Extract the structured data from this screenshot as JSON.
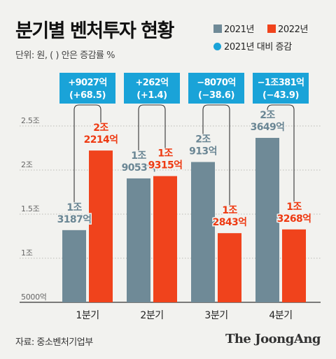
{
  "header": {
    "title": "분기별 벤처투자 현황",
    "unit": "단위: 원, ( ) 안은 증감률 %"
  },
  "legend": {
    "series_2021": "2021년",
    "series_2022": "2022년",
    "change": "2021년 대비 증감"
  },
  "colors": {
    "series_2021": "#6f8a97",
    "series_2022": "#f0431c",
    "change": "#1aa3d8",
    "label_2021": "#6a8694",
    "label_2022": "#ee3a12"
  },
  "footer": {
    "source": "자료: 중소벤처기업부",
    "brand": "The JoongAng"
  },
  "chart_data": {
    "type": "bar",
    "categories": [
      "1분기",
      "2분기",
      "3분기",
      "4분기"
    ],
    "series": [
      {
        "name": "2021년",
        "values": [
          1.3187,
          1.9053,
          2.0913,
          2.3649
        ],
        "labels": [
          [
            "1조",
            "3187억"
          ],
          [
            "1조",
            "9053억"
          ],
          [
            "2조",
            "913억"
          ],
          [
            "2조",
            "3649억"
          ]
        ]
      },
      {
        "name": "2022년",
        "values": [
          2.2214,
          1.9315,
          1.2843,
          1.3268
        ],
        "labels": [
          [
            "2조",
            "2214억"
          ],
          [
            "1조",
            "9315억"
          ],
          [
            "1조",
            "2843억"
          ],
          [
            "1조",
            "3268억"
          ]
        ]
      }
    ],
    "annotations": [
      [
        "+9027억",
        "(+68.5)"
      ],
      [
        "+262억",
        "(+1.4)"
      ],
      [
        "−8070억",
        "(−38.6)"
      ],
      [
        "−1조381억",
        "(−43.9)"
      ]
    ],
    "y_ticks": [
      {
        "value": 0.5,
        "label": "5000억"
      },
      {
        "value": 1.0,
        "label": "1조"
      },
      {
        "value": 1.5,
        "label": "1.5조"
      },
      {
        "value": 2.0,
        "label": "2조"
      },
      {
        "value": 2.5,
        "label": "2.5조"
      }
    ],
    "ylim": [
      0.5,
      2.5
    ],
    "grid": true
  }
}
